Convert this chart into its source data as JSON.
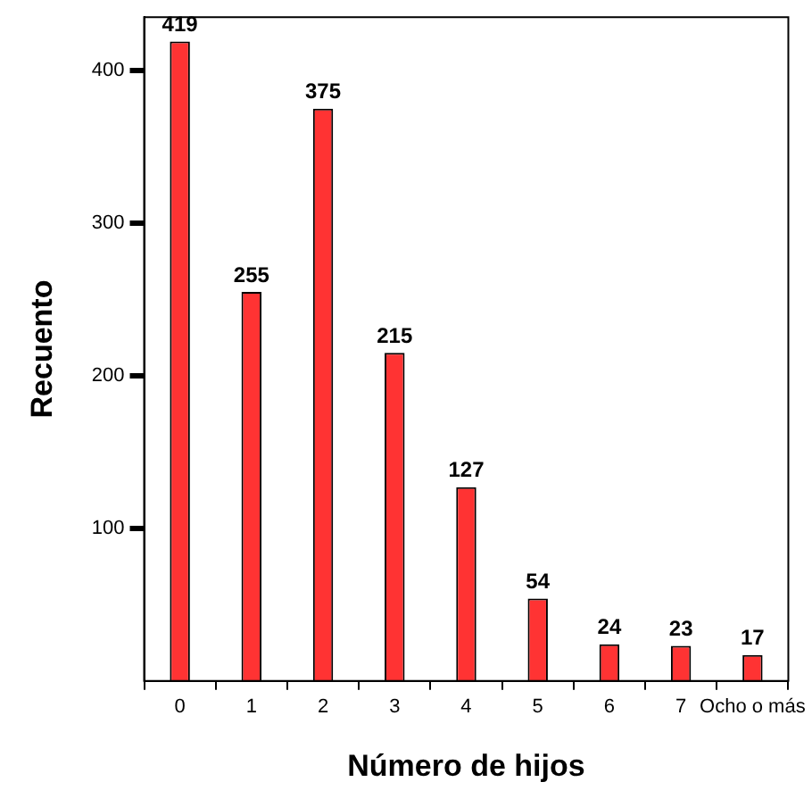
{
  "chart_data": {
    "type": "bar",
    "xlabel": "Número de hijos",
    "ylabel": "Recuento",
    "categories": [
      "0",
      "1",
      "2",
      "3",
      "4",
      "5",
      "6",
      "7",
      "Ocho o más"
    ],
    "values": [
      419,
      255,
      375,
      215,
      127,
      54,
      24,
      23,
      17
    ],
    "color": "#ff3333",
    "ylim": [
      0,
      435
    ],
    "yticks": [
      100,
      200,
      300,
      400
    ],
    "grid": false,
    "data_labels": true
  }
}
